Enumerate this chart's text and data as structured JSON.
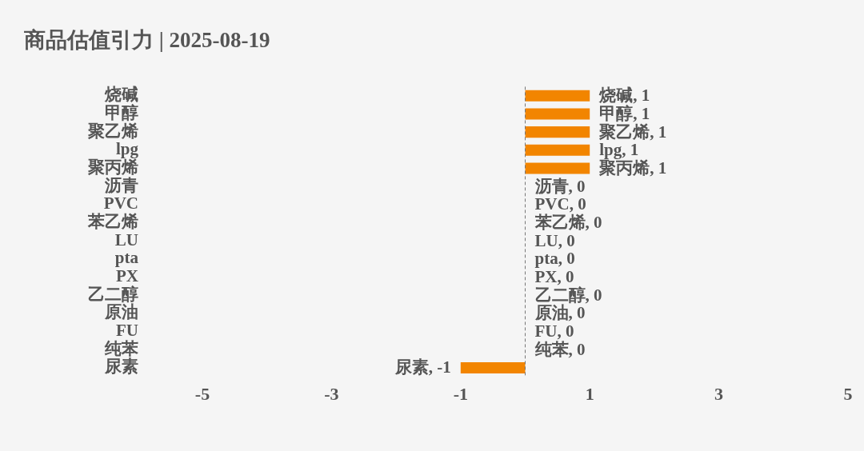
{
  "chart_data": {
    "type": "bar",
    "orientation": "horizontal",
    "title": "商品估值引力 | 2025-08-19",
    "categories": [
      "烧碱",
      "甲醇",
      "聚乙烯",
      "lpg",
      "聚丙烯",
      "沥青",
      "PVC",
      "苯乙烯",
      "LU",
      "pta",
      "PX",
      "乙二醇",
      "原油",
      "FU",
      "纯苯",
      "尿素"
    ],
    "values": [
      1,
      1,
      1,
      1,
      1,
      0,
      0,
      0,
      0,
      0,
      0,
      0,
      0,
      0,
      0,
      -1
    ],
    "value_labels": [
      "烧碱, 1",
      "甲醇, 1",
      "聚乙烯, 1",
      "lpg, 1",
      "聚丙烯, 1",
      "沥青, 0",
      "PVC, 0",
      "苯乙烯, 0",
      "LU, 0",
      "pta, 0",
      "PX, 0",
      "乙二醇, 0",
      "原油, 0",
      "FU, 0",
      "纯苯, 0",
      "尿素, -1"
    ],
    "color": "#f28500",
    "xlim": [
      -5,
      5
    ],
    "xticks": [
      -5,
      -3,
      -1,
      1,
      3,
      5
    ],
    "ref_lines": [
      {
        "axis": "x",
        "value": 0,
        "color": "#777777",
        "line_style": "dashed"
      }
    ],
    "grid": false,
    "legend": false
  }
}
